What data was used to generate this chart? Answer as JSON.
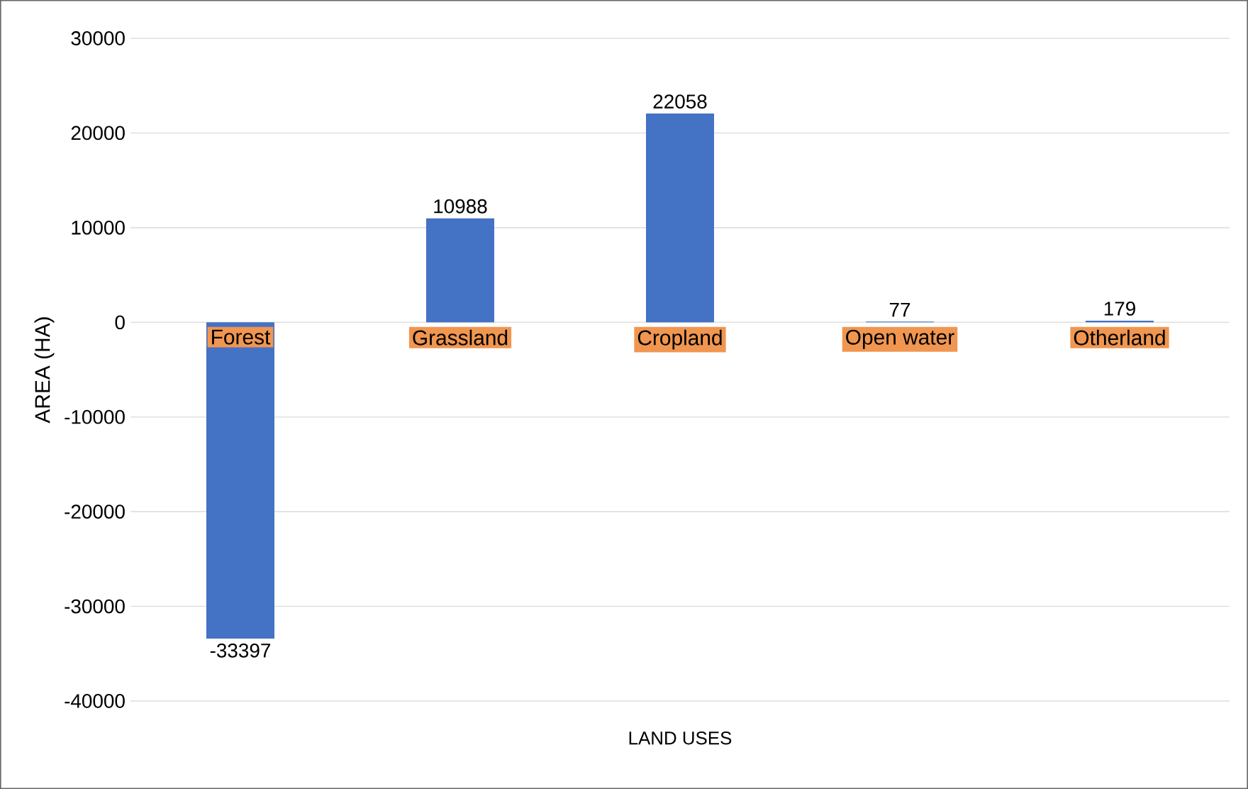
{
  "chart_data": {
    "type": "bar",
    "xlabel": "LAND USES",
    "ylabel": "AREA (HA)",
    "categories": [
      "Forest",
      "Grassland",
      "Cropland",
      "Open water",
      "Otherland"
    ],
    "values": [
      -33397,
      10988,
      22058,
      77,
      179
    ],
    "color": "#4472c4",
    "ylim": [
      -40000,
      30000
    ],
    "yticks": [
      -40000,
      -30000,
      -20000,
      -10000,
      0,
      10000,
      20000,
      30000
    ],
    "grid": "y",
    "data_labels": true
  }
}
